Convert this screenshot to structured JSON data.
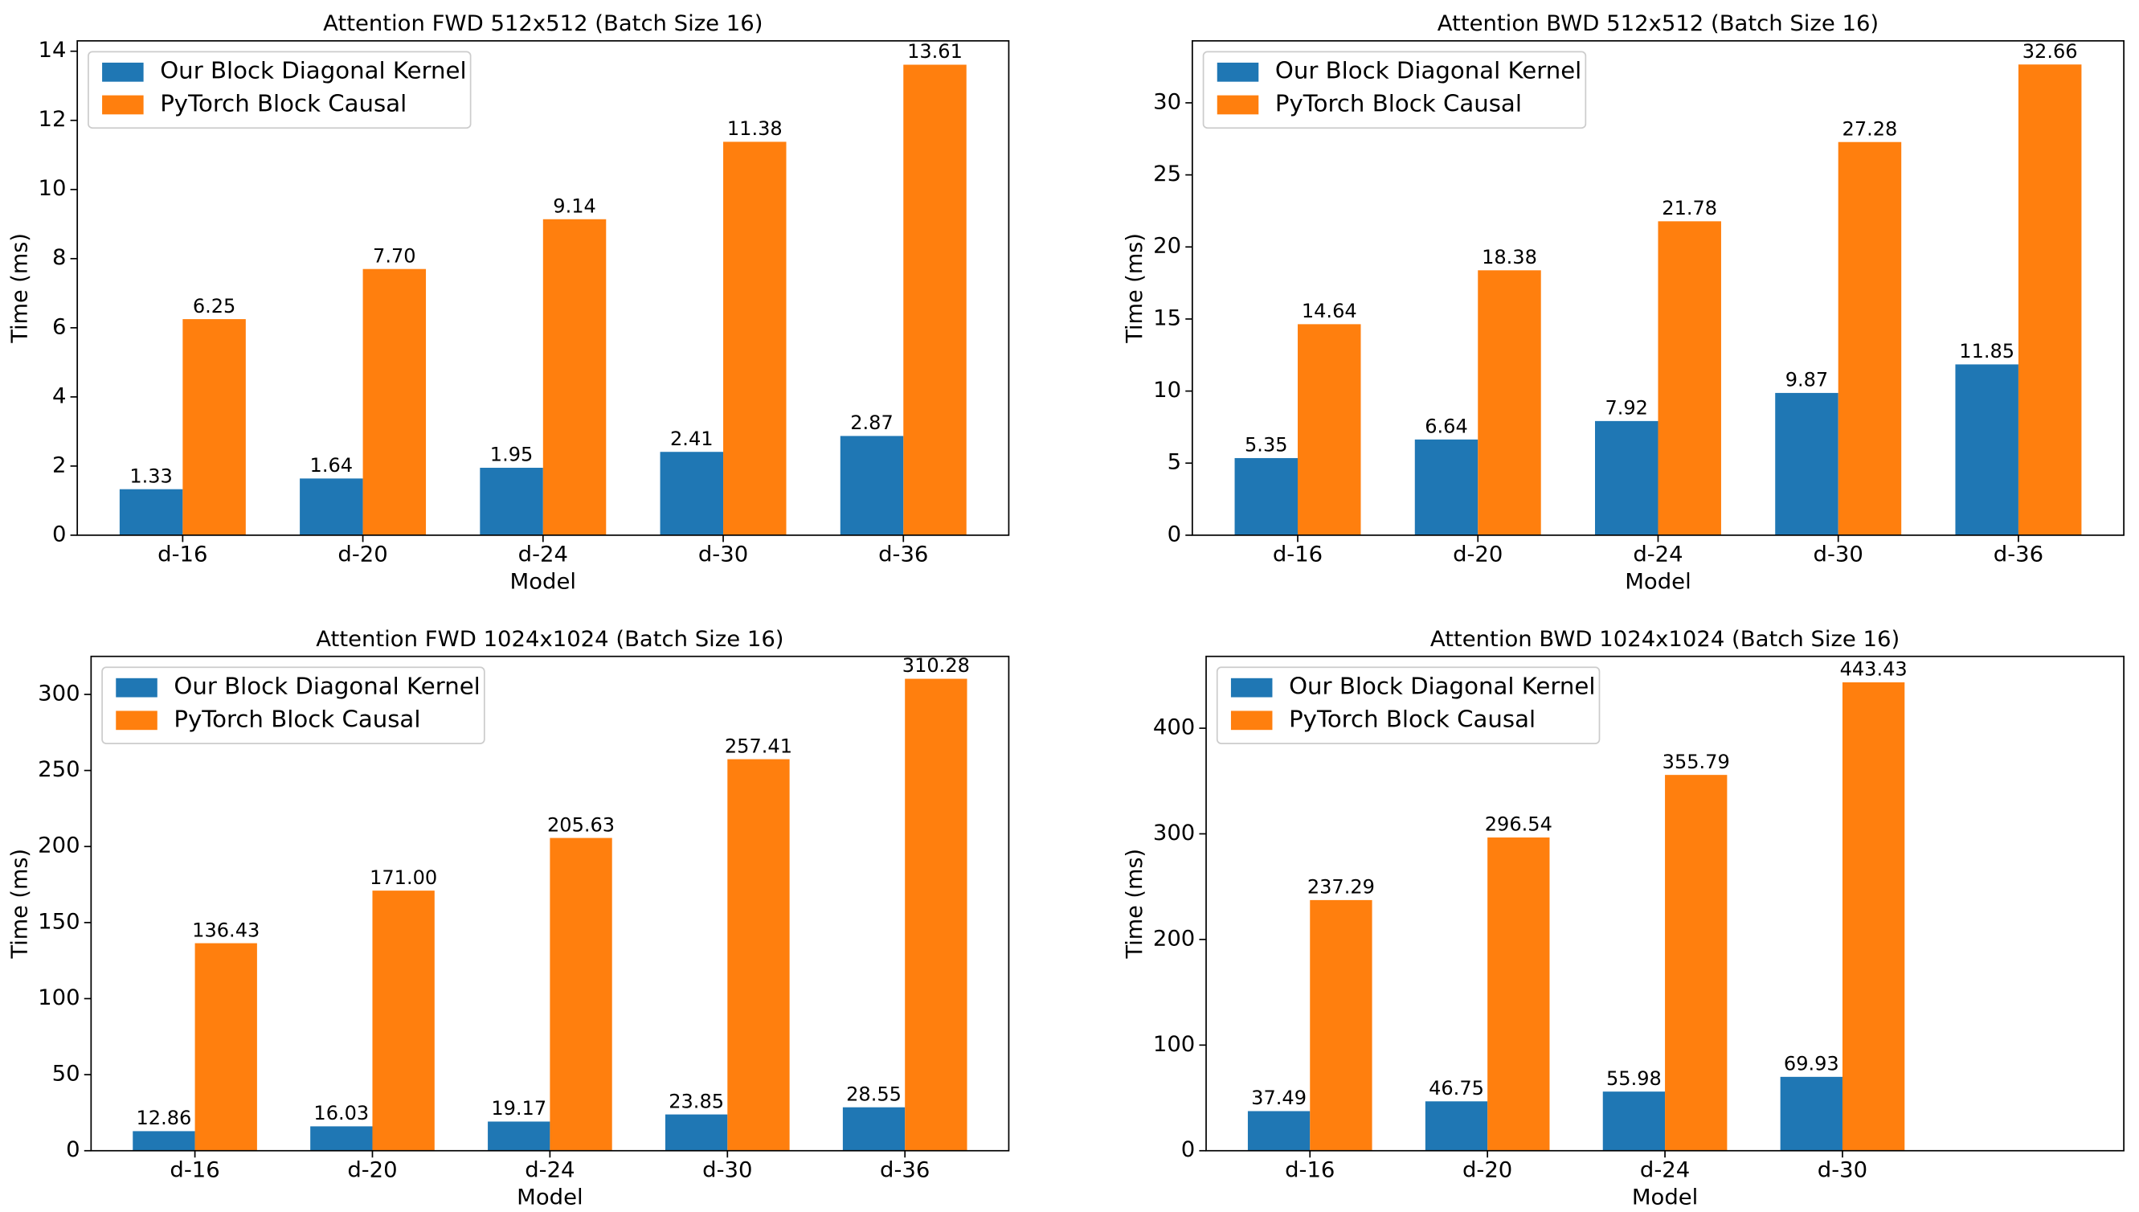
{
  "chart_data": [
    {
      "type": "bar",
      "title": "Attention FWD 512x512 (Batch Size 16)",
      "xlabel": "Model",
      "ylabel": "Time (ms)",
      "categories": [
        "d-16",
        "d-20",
        "d-24",
        "d-30",
        "d-36"
      ],
      "series": [
        {
          "name": "Our Block Diagonal Kernel",
          "color": "#1f77b4",
          "values": [
            1.33,
            1.64,
            1.95,
            2.41,
            2.87
          ],
          "value_labels": [
            "1.33",
            "1.64",
            "1.95",
            "2.41",
            "2.87"
          ]
        },
        {
          "name": "PyTorch Block Causal",
          "color": "#ff7f0e",
          "values": [
            6.25,
            7.7,
            9.14,
            11.38,
            13.61
          ],
          "value_labels": [
            "6.25",
            "7.70",
            "9.14",
            "11.38",
            "13.61"
          ]
        }
      ],
      "ylim": [
        0,
        14.3
      ],
      "yticks": [
        0,
        2,
        4,
        6,
        8,
        10,
        12,
        14
      ],
      "legend": "upper left"
    },
    {
      "type": "bar",
      "title": "Attention BWD 512x512 (Batch Size 16)",
      "xlabel": "Model",
      "ylabel": "Time (ms)",
      "categories": [
        "d-16",
        "d-20",
        "d-24",
        "d-30",
        "d-36"
      ],
      "series": [
        {
          "name": "Our Block Diagonal Kernel",
          "color": "#1f77b4",
          "values": [
            5.35,
            6.64,
            7.92,
            9.87,
            11.85
          ],
          "value_labels": [
            "5.35",
            "6.64",
            "7.92",
            "9.87",
            "11.85"
          ]
        },
        {
          "name": "PyTorch Block Causal",
          "color": "#ff7f0e",
          "values": [
            14.64,
            18.38,
            21.78,
            27.28,
            32.66
          ],
          "value_labels": [
            "14.64",
            "18.38",
            "21.78",
            "27.28",
            "32.66"
          ]
        }
      ],
      "ylim": [
        0,
        34.3
      ],
      "yticks": [
        0,
        5,
        10,
        15,
        20,
        25,
        30
      ],
      "legend": "upper left"
    },
    {
      "type": "bar",
      "title": "Attention FWD 1024x1024 (Batch Size 16)",
      "xlabel": "Model",
      "ylabel": "Time (ms)",
      "categories": [
        "d-16",
        "d-20",
        "d-24",
        "d-30",
        "d-36"
      ],
      "series": [
        {
          "name": "Our Block Diagonal Kernel",
          "color": "#1f77b4",
          "values": [
            12.86,
            16.03,
            19.17,
            23.85,
            28.55
          ],
          "value_labels": [
            "12.86",
            "16.03",
            "19.17",
            "23.85",
            "28.55"
          ]
        },
        {
          "name": "PyTorch Block Causal",
          "color": "#ff7f0e",
          "values": [
            136.43,
            171,
            205.63,
            257.41,
            310.28
          ],
          "value_labels": [
            "136.43",
            "171.00",
            "205.63",
            "257.41",
            "310.28"
          ]
        }
      ],
      "ylim": [
        0,
        325
      ],
      "yticks": [
        0,
        50,
        100,
        150,
        200,
        250,
        300
      ],
      "legend": "upper left"
    },
    {
      "type": "bar",
      "title": "Attention BWD 1024x1024 (Batch Size 16)",
      "xlabel": "Model",
      "ylabel": "Time (ms)",
      "categories": [
        "d-16",
        "d-20",
        "d-24",
        "d-30"
      ],
      "series": [
        {
          "name": "Our Block Diagonal Kernel",
          "color": "#1f77b4",
          "values": [
            37.49,
            46.75,
            55.98,
            69.93
          ],
          "value_labels": [
            "37.49",
            "46.75",
            "55.98",
            "69.93"
          ]
        },
        {
          "name": "PyTorch Block Causal",
          "color": "#ff7f0e",
          "values": [
            237.29,
            296.54,
            355.79,
            443.43
          ],
          "value_labels": [
            "237.29",
            "296.54",
            "355.79",
            "443.43"
          ]
        }
      ],
      "ylim": [
        0,
        468
      ],
      "yticks": [
        0,
        100,
        200,
        300,
        400
      ],
      "legend": "upper left"
    }
  ]
}
